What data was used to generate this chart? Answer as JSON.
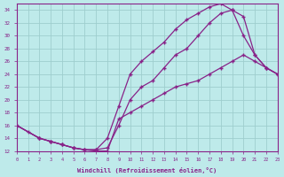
{
  "xlabel": "Windchill (Refroidissement éolien,°C)",
  "background_color": "#beeaea",
  "grid_color": "#9ecece",
  "line_color": "#882288",
  "marker": "+",
  "xlim": [
    0,
    23
  ],
  "ylim": [
    12,
    35
  ],
  "xticks": [
    0,
    1,
    2,
    3,
    4,
    5,
    6,
    7,
    8,
    9,
    10,
    11,
    12,
    13,
    14,
    15,
    16,
    17,
    18,
    19,
    20,
    21,
    22,
    23
  ],
  "yticks": [
    12,
    14,
    16,
    18,
    20,
    22,
    24,
    26,
    28,
    30,
    32,
    34
  ],
  "curve1_x": [
    0,
    1,
    2,
    3,
    4,
    5,
    6,
    7,
    8,
    9,
    10,
    11,
    12,
    13,
    14,
    15,
    16,
    17,
    18,
    19,
    20,
    21,
    22,
    23
  ],
  "curve1_y": [
    16,
    15,
    14,
    13.5,
    13,
    12.5,
    12.2,
    12.2,
    14,
    19,
    24,
    26,
    27.5,
    29,
    31,
    32.5,
    33.5,
    34.5,
    35,
    34,
    30,
    27,
    25,
    24
  ],
  "curve2_x": [
    0,
    2,
    3,
    4,
    5,
    6,
    7,
    8,
    9,
    10,
    11,
    12,
    13,
    14,
    15,
    16,
    17,
    18,
    19,
    20,
    21,
    22,
    23
  ],
  "curve2_y": [
    16,
    14,
    13.5,
    13,
    12.5,
    12.2,
    12.2,
    12.5,
    16,
    20,
    22,
    23,
    25,
    27,
    28,
    30,
    32,
    33.5,
    34,
    33,
    27,
    25,
    24
  ],
  "curve3_x": [
    0,
    2,
    3,
    4,
    5,
    6,
    7,
    8,
    9,
    10,
    11,
    12,
    13,
    14,
    15,
    16,
    17,
    18,
    19,
    20,
    21,
    22,
    23
  ],
  "curve3_y": [
    16,
    14,
    13.5,
    13,
    12.5,
    12.2,
    12,
    12,
    17,
    18,
    19,
    20,
    21,
    22,
    22.5,
    23,
    24,
    25,
    26,
    27,
    26,
    25,
    24
  ]
}
